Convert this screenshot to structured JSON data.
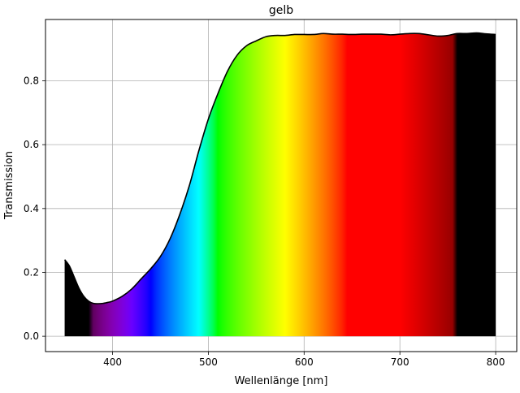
{
  "chart_data": {
    "type": "area",
    "title": "gelb",
    "xlabel": "Wellenlänge [nm]",
    "ylabel": "Transmission",
    "xlim": [
      330,
      822
    ],
    "ylim": [
      -0.048,
      0.992
    ],
    "xticks": [
      400,
      500,
      600,
      700,
      800
    ],
    "yticks": [
      0.0,
      0.2,
      0.4,
      0.6,
      0.8
    ],
    "ytick_labels": [
      "0.0",
      "0.2",
      "0.4",
      "0.6",
      "0.8"
    ],
    "grid": true,
    "fill": "visible-spectrum",
    "line_color": "#000000",
    "series": [
      {
        "x": [
          350,
          355,
          360,
          365,
          370,
          375,
          380,
          385,
          390,
          395,
          400,
          410,
          420,
          430,
          440,
          450,
          460,
          470,
          480,
          490,
          500,
          510,
          520,
          530,
          540,
          550,
          560,
          570,
          580,
          590,
          600,
          610,
          620,
          630,
          640,
          650,
          660,
          670,
          680,
          690,
          700,
          710,
          720,
          730,
          740,
          750,
          760,
          770,
          780,
          790,
          800
        ],
        "y": [
          0.24,
          0.22,
          0.185,
          0.15,
          0.125,
          0.11,
          0.103,
          0.102,
          0.103,
          0.106,
          0.11,
          0.125,
          0.148,
          0.18,
          0.212,
          0.25,
          0.305,
          0.38,
          0.47,
          0.58,
          0.68,
          0.76,
          0.83,
          0.88,
          0.91,
          0.925,
          0.938,
          0.942,
          0.942,
          0.945,
          0.945,
          0.945,
          0.948,
          0.946,
          0.946,
          0.945,
          0.946,
          0.946,
          0.946,
          0.944,
          0.946,
          0.948,
          0.948,
          0.944,
          0.94,
          0.942,
          0.948,
          0.948,
          0.95,
          0.947,
          0.945
        ]
      }
    ]
  }
}
